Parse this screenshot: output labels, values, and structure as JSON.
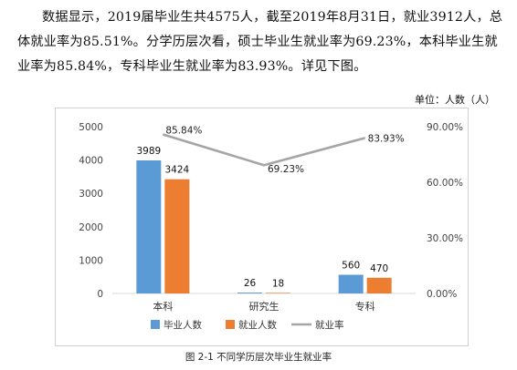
{
  "text": {
    "line1": "数据显示，2019届毕业生共4575人，截至2019年8月31日，就业3912人，总",
    "line2": "体就业率为85.51%。分学历层次看，硕士毕业生就业率为69.23%，本科毕业生就",
    "line3": "业率为85.84%，专科毕业生就业率为83.93%。详见下图。"
  },
  "unit_label": "单位：人数（人）",
  "caption": "图 2-1  不同学历层次毕业生就业率",
  "colors": {
    "graduates": "#5b9bd5",
    "employed": "#ed7d31",
    "rate": "#a5a5a5"
  },
  "chart_data": {
    "type": "bar",
    "categories": [
      "本科",
      "研究生",
      "专科"
    ],
    "series": [
      {
        "name": "毕业人数",
        "kind": "bar",
        "axis": "left",
        "values": [
          3989,
          26,
          560
        ]
      },
      {
        "name": "就业人数",
        "kind": "bar",
        "axis": "left",
        "values": [
          3424,
          18,
          470
        ]
      },
      {
        "name": "就业率",
        "kind": "line",
        "axis": "right",
        "values": [
          85.84,
          69.23,
          83.93
        ],
        "labels": [
          "85.84%",
          "69.23%",
          "83.93%"
        ]
      }
    ],
    "y_left": {
      "ylim": [
        0,
        5000
      ],
      "ticks": [
        "0",
        "1000",
        "2000",
        "3000",
        "4000",
        "5000"
      ]
    },
    "y_right": {
      "ylim": [
        0,
        90
      ],
      "ticks": [
        "0.00%",
        "30.00%",
        "60.00%",
        "90.00%"
      ]
    },
    "legend_position": "bottom",
    "grid": false
  }
}
